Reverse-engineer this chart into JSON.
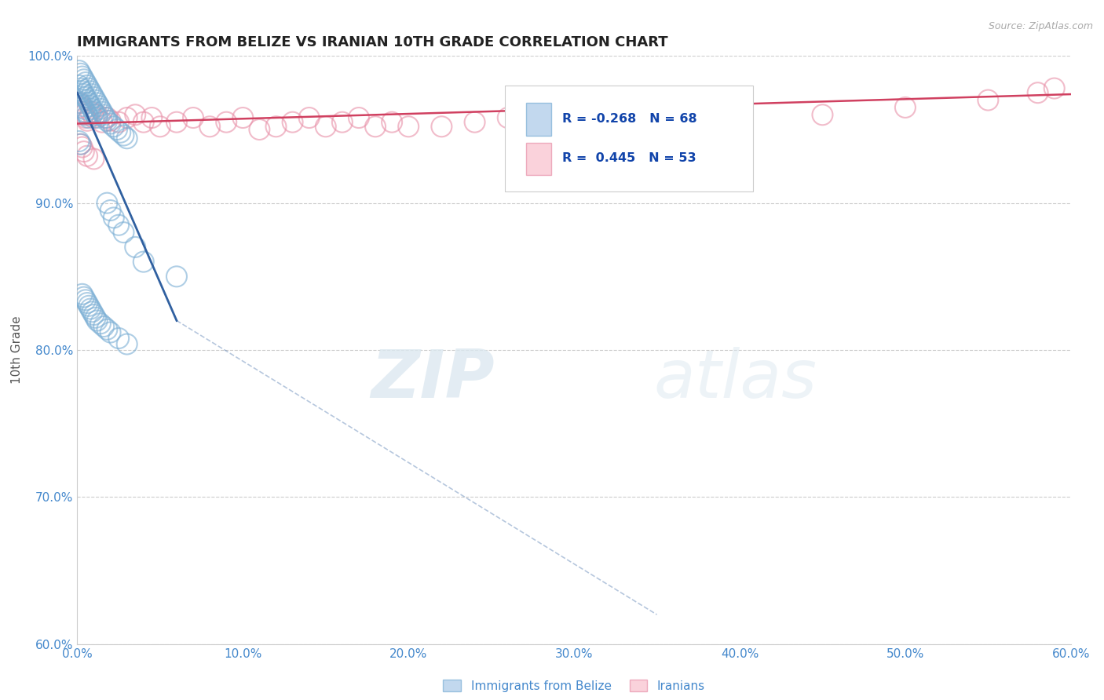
{
  "title": "IMMIGRANTS FROM BELIZE VS IRANIAN 10TH GRADE CORRELATION CHART",
  "source": "Source: ZipAtlas.com",
  "ylabel": "10th Grade",
  "legend_belize": "Immigrants from Belize",
  "legend_iranians": "Iranians",
  "xlim": [
    0.0,
    0.6
  ],
  "ylim": [
    0.6,
    1.0
  ],
  "xticks": [
    0.0,
    0.1,
    0.2,
    0.3,
    0.4,
    0.5,
    0.6
  ],
  "xticklabels": [
    "0.0%",
    "10.0%",
    "20.0%",
    "30.0%",
    "40.0%",
    "50.0%",
    "60.0%"
  ],
  "yticks": [
    0.6,
    0.7,
    0.8,
    0.9,
    1.0
  ],
  "yticklabels": [
    "60.0%",
    "70.0%",
    "80.0%",
    "90.0%",
    "100.0%"
  ],
  "legend_R_blue": "-0.268",
  "legend_N_blue": "68",
  "legend_R_pink": " 0.445",
  "legend_N_pink": "53",
  "blue_color": "#a8c8e8",
  "blue_edge_color": "#7aaed4",
  "pink_color": "#f8c0cc",
  "pink_edge_color": "#e890a8",
  "blue_line_color": "#3060a0",
  "pink_line_color": "#d04060",
  "watermark_zip": "ZIP",
  "watermark_atlas": "atlas",
  "blue_x": [
    0.001,
    0.001,
    0.002,
    0.002,
    0.002,
    0.003,
    0.003,
    0.003,
    0.004,
    0.004,
    0.004,
    0.005,
    0.005,
    0.005,
    0.006,
    0.006,
    0.006,
    0.007,
    0.007,
    0.007,
    0.008,
    0.008,
    0.009,
    0.009,
    0.01,
    0.01,
    0.011,
    0.011,
    0.012,
    0.012,
    0.013,
    0.014,
    0.015,
    0.016,
    0.017,
    0.018,
    0.02,
    0.022,
    0.024,
    0.026,
    0.028,
    0.03,
    0.001,
    0.002,
    0.003,
    0.004,
    0.005,
    0.006,
    0.007,
    0.008,
    0.009,
    0.01,
    0.011,
    0.012,
    0.014,
    0.016,
    0.018,
    0.02,
    0.025,
    0.03,
    0.018,
    0.02,
    0.022,
    0.025,
    0.028,
    0.035,
    0.04,
    0.06
  ],
  "blue_y": [
    0.99,
    0.98,
    0.988,
    0.978,
    0.968,
    0.986,
    0.976,
    0.966,
    0.984,
    0.974,
    0.964,
    0.982,
    0.972,
    0.962,
    0.98,
    0.97,
    0.96,
    0.978,
    0.968,
    0.958,
    0.976,
    0.966,
    0.974,
    0.964,
    0.972,
    0.962,
    0.97,
    0.96,
    0.968,
    0.958,
    0.966,
    0.964,
    0.962,
    0.96,
    0.958,
    0.956,
    0.954,
    0.952,
    0.95,
    0.948,
    0.946,
    0.944,
    0.942,
    0.94,
    0.838,
    0.836,
    0.834,
    0.832,
    0.83,
    0.828,
    0.826,
    0.824,
    0.822,
    0.82,
    0.818,
    0.816,
    0.814,
    0.812,
    0.808,
    0.804,
    0.9,
    0.895,
    0.89,
    0.885,
    0.88,
    0.87,
    0.86,
    0.85
  ],
  "pink_x": [
    0.001,
    0.002,
    0.003,
    0.004,
    0.005,
    0.006,
    0.008,
    0.01,
    0.012,
    0.015,
    0.018,
    0.02,
    0.025,
    0.03,
    0.035,
    0.04,
    0.045,
    0.05,
    0.06,
    0.07,
    0.08,
    0.09,
    0.1,
    0.11,
    0.12,
    0.13,
    0.14,
    0.15,
    0.16,
    0.17,
    0.18,
    0.19,
    0.2,
    0.22,
    0.24,
    0.26,
    0.28,
    0.3,
    0.32,
    0.34,
    0.36,
    0.38,
    0.4,
    0.45,
    0.5,
    0.55,
    0.58,
    0.59,
    0.002,
    0.003,
    0.004,
    0.006,
    0.01
  ],
  "pink_y": [
    0.968,
    0.965,
    0.962,
    0.96,
    0.958,
    0.956,
    0.962,
    0.958,
    0.96,
    0.955,
    0.958,
    0.956,
    0.955,
    0.958,
    0.96,
    0.955,
    0.958,
    0.952,
    0.955,
    0.958,
    0.952,
    0.955,
    0.958,
    0.95,
    0.952,
    0.955,
    0.958,
    0.952,
    0.955,
    0.958,
    0.952,
    0.955,
    0.952,
    0.952,
    0.955,
    0.958,
    0.96,
    0.962,
    0.958,
    0.955,
    0.952,
    0.955,
    0.958,
    0.96,
    0.965,
    0.97,
    0.975,
    0.978,
    0.94,
    0.938,
    0.935,
    0.932,
    0.93
  ]
}
